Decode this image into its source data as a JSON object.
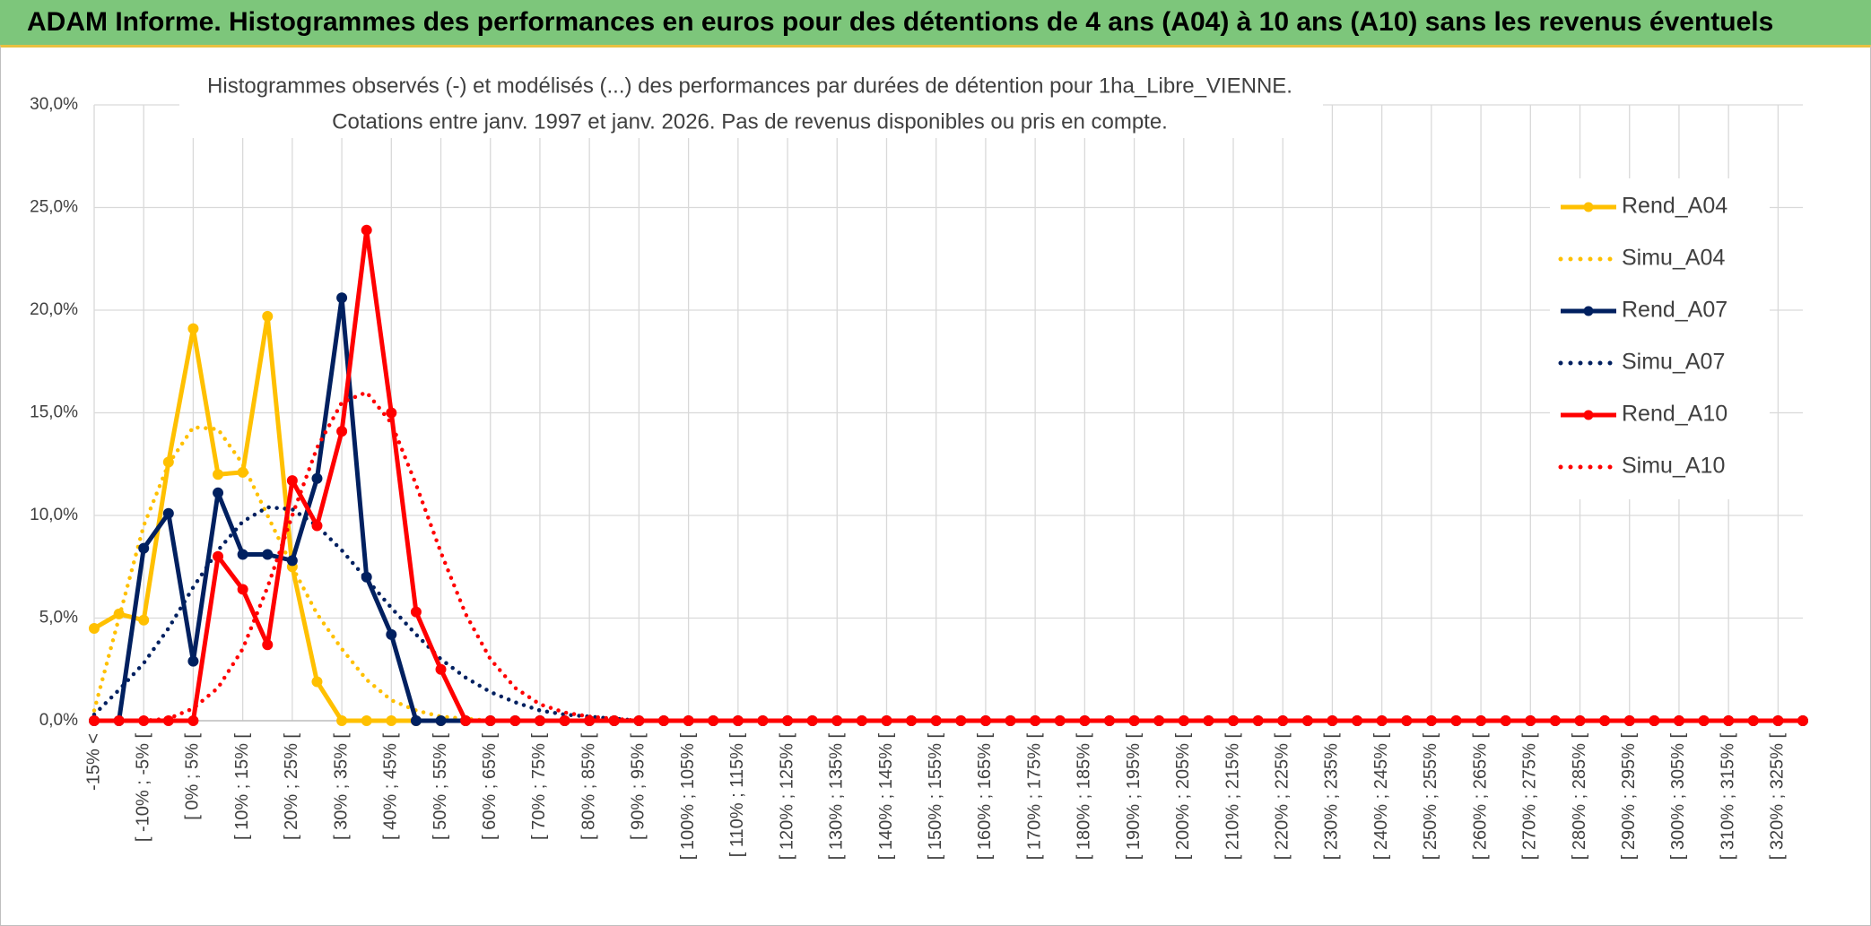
{
  "header": {
    "title": "ADAM Informe. Histogrammes des performances en euros pour des détentions de 4 ans (A04) à 10 ans (A10) sans les revenus éventuels"
  },
  "chart_data": {
    "type": "line",
    "title": "Histogrammes observés (-) et modélisés (...) des performances par durées de détention pour 1ha_Libre_VIENNE.",
    "subtitle": "Cotations entre janv. 1997 et janv. 2026. Pas de revenus disponibles ou pris en compte.",
    "categories": [
      "-15% <",
      null,
      "[ -10% ; -5% [",
      null,
      "[ 0% ; 5% [",
      null,
      "[ 10% ; 15% [",
      null,
      "[ 20% ; 25% [",
      null,
      "[ 30% ; 35% [",
      null,
      "[ 40% ; 45% [",
      null,
      "[ 50% ; 55% [",
      null,
      "[ 60% ; 65% [",
      null,
      "[ 70% ; 75% [",
      null,
      "[ 80% ; 85% [",
      null,
      "[ 90% ; 95% [",
      null,
      "[ 100% ; 105% [",
      null,
      "[ 110% ; 115% [",
      null,
      "[ 120% ; 125% [",
      null,
      "[ 130% ; 135% [",
      null,
      "[ 140% ; 145% [",
      null,
      "[ 150% ; 155% [",
      null,
      "[ 160% ; 165% [",
      null,
      "[ 170% ; 175% [",
      null,
      "[ 180% ; 185% [",
      null,
      "[ 190% ; 195% [",
      null,
      "[ 200% ; 205% [",
      null,
      "[ 210% ; 215% [",
      null,
      "[ 220% ; 225% [",
      null,
      "[ 230% ; 235% [",
      null,
      "[ 240% ; 245% [",
      null,
      "[ 250% ; 255% [",
      null,
      "[ 260% ; 265% [",
      null,
      "[ 270% ; 275% [",
      null,
      "[ 280% ; 285% [",
      null,
      "[ 290% ; 295% [",
      null,
      "[ 300% ; 305% [",
      null,
      "[ 310% ; 315% [",
      null,
      "[ 320% ; 325% [",
      null
    ],
    "series": [
      {
        "name": "Rend_A04",
        "color": "#ffc000",
        "dash": "solid",
        "markers": true,
        "values": [
          4.5,
          5.2,
          4.9,
          12.6,
          19.1,
          12.0,
          12.1,
          19.7,
          7.5,
          1.9,
          0,
          0,
          0,
          0,
          0,
          0,
          0,
          0,
          0,
          0,
          0,
          0,
          0,
          0,
          0,
          0,
          0,
          0,
          0,
          0,
          0,
          0,
          0,
          0,
          0,
          0,
          0,
          0,
          0,
          0,
          0,
          0,
          0,
          0,
          0,
          0,
          0,
          0,
          0,
          0,
          0,
          0,
          0,
          0,
          0,
          0,
          0,
          0,
          0,
          0,
          0,
          0,
          0,
          0,
          0,
          0,
          0,
          0,
          0,
          0
        ]
      },
      {
        "name": "Simu_A04",
        "color": "#ffc000",
        "dash": "dotted",
        "markers": false,
        "values": [
          0.5,
          5,
          9.5,
          12.5,
          14.3,
          14.2,
          12.5,
          10,
          7.5,
          5.2,
          3.5,
          2,
          1,
          0.5,
          0.2,
          0.1,
          0,
          0,
          0,
          0,
          0,
          0,
          0,
          0,
          0,
          0,
          0,
          0,
          0,
          0,
          0,
          0,
          0,
          0,
          0,
          0,
          0,
          0,
          0,
          0,
          0,
          0,
          0,
          0,
          0,
          0,
          0,
          0,
          0,
          0,
          0,
          0,
          0,
          0,
          0,
          0,
          0,
          0,
          0,
          0,
          0,
          0,
          0,
          0,
          0,
          0,
          0,
          0,
          0,
          0
        ]
      },
      {
        "name": "Rend_A07",
        "color": "#002060",
        "dash": "solid",
        "markers": true,
        "values": [
          0,
          0,
          8.4,
          10.1,
          2.9,
          11.1,
          8.1,
          8.1,
          7.8,
          11.8,
          20.6,
          7.0,
          4.2,
          0,
          0,
          0,
          0,
          0,
          0,
          0,
          0,
          0,
          0,
          0,
          0,
          0,
          0,
          0,
          0,
          0,
          0,
          0,
          0,
          0,
          0,
          0,
          0,
          0,
          0,
          0,
          0,
          0,
          0,
          0,
          0,
          0,
          0,
          0,
          0,
          0,
          0,
          0,
          0,
          0,
          0,
          0,
          0,
          0,
          0,
          0,
          0,
          0,
          0,
          0,
          0,
          0,
          0,
          0,
          0,
          0
        ]
      },
      {
        "name": "Simu_A07",
        "color": "#002060",
        "dash": "dotted",
        "markers": false,
        "values": [
          0.3,
          1.5,
          2.8,
          4.5,
          6.5,
          8.3,
          9.7,
          10.4,
          10.3,
          9.5,
          8.3,
          6.9,
          5.5,
          4.2,
          3,
          2.1,
          1.4,
          0.9,
          0.5,
          0.3,
          0.2,
          0.1,
          0,
          0,
          0,
          0,
          0,
          0,
          0,
          0,
          0,
          0,
          0,
          0,
          0,
          0,
          0,
          0,
          0,
          0,
          0,
          0,
          0,
          0,
          0,
          0,
          0,
          0,
          0,
          0,
          0,
          0,
          0,
          0,
          0,
          0,
          0,
          0,
          0,
          0,
          0,
          0,
          0,
          0,
          0,
          0,
          0,
          0,
          0,
          0
        ]
      },
      {
        "name": "Rend_A10",
        "color": "#ff0000",
        "dash": "solid",
        "markers": true,
        "values": [
          0,
          0,
          0,
          0,
          0,
          8,
          6.4,
          3.7,
          11.7,
          9.5,
          14.1,
          23.9,
          15,
          5.3,
          2.5,
          0,
          0,
          0,
          0,
          0,
          0,
          0,
          0,
          0,
          0,
          0,
          0,
          0,
          0,
          0,
          0,
          0,
          0,
          0,
          0,
          0,
          0,
          0,
          0,
          0,
          0,
          0,
          0,
          0,
          0,
          0,
          0,
          0,
          0,
          0,
          0,
          0,
          0,
          0,
          0,
          0,
          0,
          0,
          0,
          0,
          0,
          0,
          0,
          0,
          0,
          0,
          0,
          0,
          0,
          0
        ]
      },
      {
        "name": "Simu_A10",
        "color": "#ff0000",
        "dash": "dotted",
        "markers": false,
        "values": [
          0,
          0,
          0,
          0.1,
          0.6,
          1.6,
          3.5,
          6.5,
          10,
          13.3,
          15.5,
          16,
          14.5,
          11.5,
          8.2,
          5.2,
          3,
          1.6,
          0.8,
          0.4,
          0.2,
          0.1,
          0,
          0,
          0,
          0,
          0,
          0,
          0,
          0,
          0,
          0,
          0,
          0,
          0,
          0,
          0,
          0,
          0,
          0,
          0,
          0,
          0,
          0,
          0,
          0,
          0,
          0,
          0,
          0,
          0,
          0,
          0,
          0,
          0,
          0,
          0,
          0,
          0,
          0,
          0,
          0,
          0,
          0,
          0,
          0,
          0,
          0,
          0,
          0
        ]
      }
    ],
    "ylim": [
      0,
      30
    ],
    "yticks": [
      {
        "value": 0,
        "label": "0,0%"
      },
      {
        "value": 5,
        "label": "5,0%"
      },
      {
        "value": 10,
        "label": "10,0%"
      },
      {
        "value": 15,
        "label": "15,0%"
      },
      {
        "value": 20,
        "label": "20,0%"
      },
      {
        "value": 25,
        "label": "25,0%"
      },
      {
        "value": 30,
        "label": "30,0%"
      }
    ],
    "grid": true,
    "legend": "right"
  }
}
